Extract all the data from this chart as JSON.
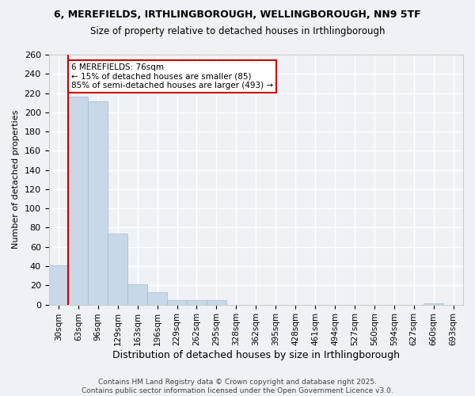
{
  "title1": "6, MEREFIELDS, IRTHLINGBOROUGH, WELLINGBOROUGH, NN9 5TF",
  "title2": "Size of property relative to detached houses in Irthlingborough",
  "xlabel": "Distribution of detached houses by size in Irthlingborough",
  "ylabel": "Number of detached properties",
  "footnote1": "Contains HM Land Registry data © Crown copyright and database right 2025.",
  "footnote2": "Contains public sector information licensed under the Open Government Licence v3.0.",
  "bins": [
    "30sqm",
    "63sqm",
    "96sqm",
    "129sqm",
    "163sqm",
    "196sqm",
    "229sqm",
    "262sqm",
    "295sqm",
    "328sqm",
    "362sqm",
    "395sqm",
    "428sqm",
    "461sqm",
    "494sqm",
    "527sqm",
    "560sqm",
    "594sqm",
    "627sqm",
    "660sqm",
    "693sqm"
  ],
  "values": [
    41,
    216,
    211,
    74,
    21,
    13,
    5,
    5,
    5,
    0,
    0,
    0,
    0,
    0,
    0,
    0,
    0,
    0,
    0,
    1,
    0
  ],
  "bar_color": "#c8d8e8",
  "bar_edge_color": "#a0b8cc",
  "annotation_title": "6 MEREFIELDS: 76sqm",
  "annotation_line1": "← 15% of detached houses are smaller (85)",
  "annotation_line2": "85% of semi-detached houses are larger (493) →",
  "annotation_color": "#cc0000",
  "vline_color": "#cc0000",
  "vline_x": 0.5,
  "ylim": [
    0,
    260
  ],
  "yticks": [
    0,
    20,
    40,
    60,
    80,
    100,
    120,
    140,
    160,
    180,
    200,
    220,
    240,
    260
  ],
  "bg_color": "#eef2f7",
  "plot_bg_color": "#eef2f7",
  "grid_color": "#ffffff"
}
